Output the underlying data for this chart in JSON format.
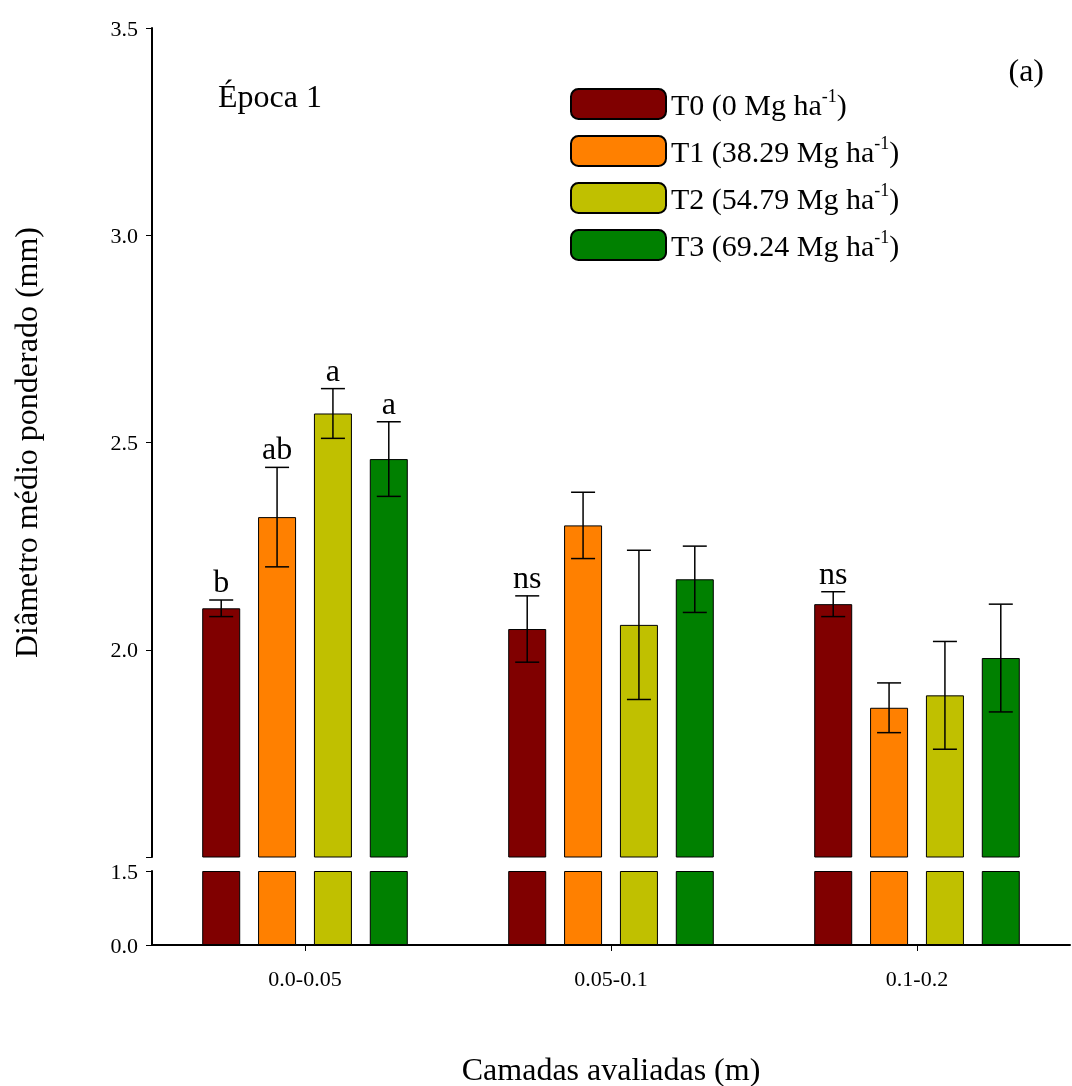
{
  "chart_data": [
    {
      "type": "bar",
      "ylabel": "Diâmetro médio ponderado (mm)",
      "ylim": [
        1.5,
        3.5
      ],
      "yticks": [
        {
          "value": 1.5,
          "label": null
        },
        {
          "value": 2,
          "label": "2.0"
        },
        {
          "value": 2.5,
          "label": "2.5"
        },
        {
          "value": 3,
          "label": "3.0"
        },
        {
          "value": 3.5,
          "label": "3.5"
        }
      ],
      "tick_labels": "y",
      "legend": "top right",
      "grid": false,
      "annotations": [
        "Época 1",
        "(a)"
      ],
      "series": [
        {
          "name": "T0 (0 Mg ha$^{-1}$)",
          "color": "#800000",
          "values": [
            2.1,
            2.05,
            2.11
          ],
          "errors": [
            0.02,
            0.08,
            0.03
          ],
          "value_labels": [
            "b",
            "ns",
            "ns"
          ]
        },
        {
          "name": "T1 (38.29 Mg ha$^{-1}$)",
          "color": "#ff8000",
          "values": [
            2.32,
            2.3,
            1.86
          ],
          "errors": [
            0.12,
            0.08,
            0.06
          ],
          "value_labels": [
            "ab",
            null,
            null
          ]
        },
        {
          "name": "T2 (54.79 Mg ha$^{-1}$)",
          "color": "#c0c000",
          "values": [
            2.57,
            2.06,
            1.89
          ],
          "errors": [
            0.06,
            0.18,
            0.13
          ],
          "value_labels": [
            "a",
            null,
            null
          ]
        },
        {
          "name": "T3 (69.24 Mg ha$^{-1}$)",
          "color": "#008000",
          "values": [
            2.46,
            2.17,
            1.98
          ],
          "errors": [
            0.09,
            0.08,
            0.13
          ],
          "value_labels": [
            "a",
            null,
            null
          ]
        }
      ]
    },
    {
      "type": "bar",
      "categories": [
        "0.0-0.05",
        "0.05-0.1",
        "0.1-0.2"
      ],
      "xlabel": "Camadas avaliadas (m)",
      "ylim": [
        0,
        1.5
      ],
      "yticks": [
        {
          "value": 0,
          "label": "0.0"
        },
        {
          "value": 1.5,
          "label": "1.5"
        }
      ],
      "grid": false,
      "series": [
        {
          "color": "#800000",
          "values": [
            1.5,
            1.5,
            1.5
          ]
        },
        {
          "color": "#ff8000",
          "values": [
            1.5,
            1.5,
            1.5
          ]
        },
        {
          "color": "#c0c000",
          "values": [
            1.5,
            1.5,
            1.5
          ]
        },
        {
          "color": "#008000",
          "values": [
            1.5,
            1.5,
            1.5
          ]
        }
      ]
    }
  ]
}
